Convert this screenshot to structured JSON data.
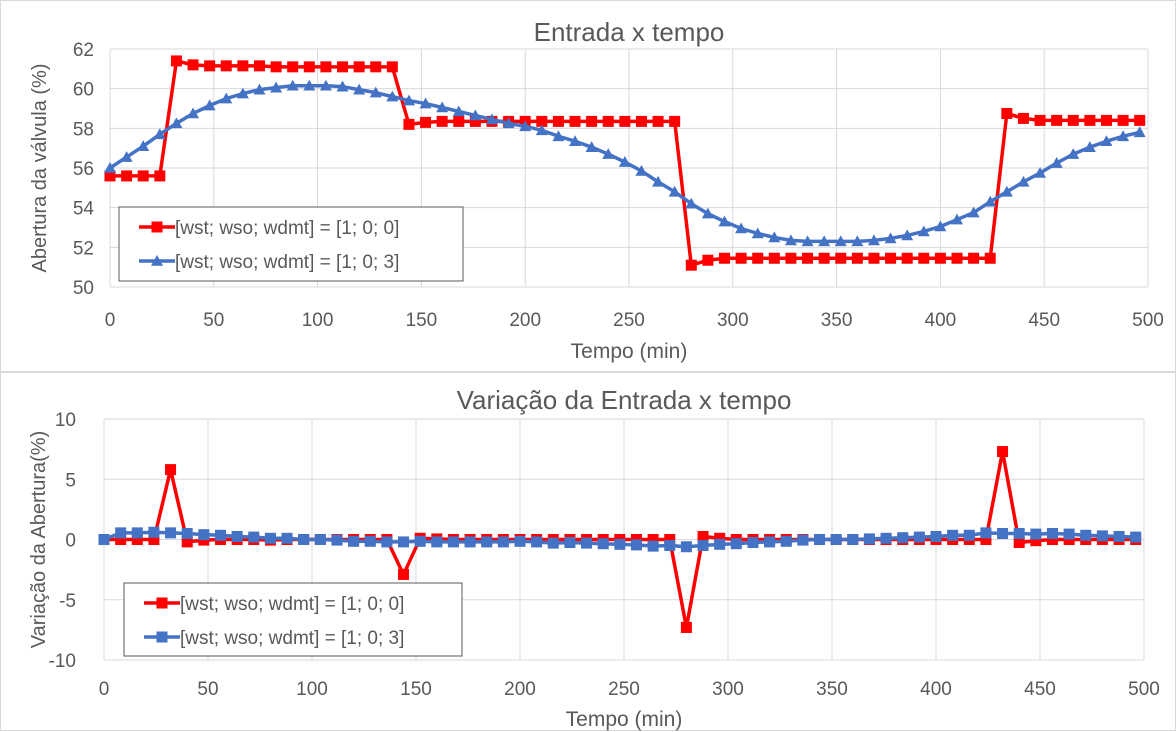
{
  "colors": {
    "series_a": "#ff0000",
    "series_b": "#4472c4",
    "grid": "#d9d9d9",
    "text": "#595959"
  },
  "chart_data": [
    {
      "type": "line",
      "title": "Entrada x tempo",
      "xlabel": "Tempo (min)",
      "ylabel": "Abertura da válvula (%)",
      "xlim": [
        0,
        500
      ],
      "ylim": [
        50,
        62
      ],
      "xticks": [
        "0",
        "50",
        "100",
        "150",
        "200",
        "250",
        "300",
        "350",
        "400",
        "450",
        "500"
      ],
      "yticks": [
        "50",
        "52",
        "54",
        "56",
        "58",
        "60",
        "62"
      ],
      "grid": true,
      "legend_position": "bottom-left",
      "series": [
        {
          "name": "[wst; wso; wdmt] = [1; 0; 0]",
          "marker": "square",
          "color": "#ff0000",
          "x": [
            0,
            8,
            16,
            24,
            32,
            40,
            48,
            56,
            64,
            72,
            80,
            88,
            96,
            104,
            112,
            120,
            128,
            136,
            144,
            152,
            160,
            168,
            176,
            184,
            192,
            200,
            208,
            216,
            224,
            232,
            240,
            248,
            256,
            264,
            272,
            280,
            288,
            296,
            304,
            312,
            320,
            328,
            336,
            344,
            352,
            360,
            368,
            376,
            384,
            392,
            400,
            408,
            416,
            424,
            432,
            440,
            448,
            456,
            464,
            472,
            480,
            488,
            496
          ],
          "y": [
            55.6,
            55.6,
            55.6,
            55.6,
            61.4,
            61.2,
            61.15,
            61.15,
            61.15,
            61.15,
            61.1,
            61.1,
            61.1,
            61.1,
            61.1,
            61.1,
            61.1,
            61.1,
            58.2,
            58.3,
            58.35,
            58.35,
            58.35,
            58.35,
            58.35,
            58.35,
            58.35,
            58.35,
            58.35,
            58.35,
            58.35,
            58.35,
            58.35,
            58.35,
            58.35,
            51.1,
            51.35,
            51.45,
            51.45,
            51.45,
            51.45,
            51.45,
            51.45,
            51.45,
            51.45,
            51.45,
            51.45,
            51.45,
            51.45,
            51.45,
            51.45,
            51.45,
            51.45,
            51.45,
            58.75,
            58.5,
            58.4,
            58.4,
            58.4,
            58.4,
            58.4,
            58.4,
            58.4
          ]
        },
        {
          "name": "[wst; wso; wdmt] = [1; 0; 3]",
          "marker": "triangle",
          "color": "#4472c4",
          "x": [
            0,
            8,
            16,
            24,
            32,
            40,
            48,
            56,
            64,
            72,
            80,
            88,
            96,
            104,
            112,
            120,
            128,
            136,
            144,
            152,
            160,
            168,
            176,
            184,
            192,
            200,
            208,
            216,
            224,
            232,
            240,
            248,
            256,
            264,
            272,
            280,
            288,
            296,
            304,
            312,
            320,
            328,
            336,
            344,
            352,
            360,
            368,
            376,
            384,
            392,
            400,
            408,
            416,
            424,
            432,
            440,
            448,
            456,
            464,
            472,
            480,
            488,
            496
          ],
          "y": [
            56.0,
            56.55,
            57.1,
            57.7,
            58.25,
            58.75,
            59.15,
            59.5,
            59.75,
            59.95,
            60.05,
            60.15,
            60.15,
            60.15,
            60.1,
            59.95,
            59.8,
            59.6,
            59.4,
            59.25,
            59.05,
            58.85,
            58.65,
            58.45,
            58.25,
            58.1,
            57.9,
            57.6,
            57.35,
            57.05,
            56.7,
            56.3,
            55.85,
            55.3,
            54.8,
            54.2,
            53.7,
            53.3,
            52.95,
            52.7,
            52.5,
            52.35,
            52.3,
            52.3,
            52.3,
            52.3,
            52.35,
            52.45,
            52.6,
            52.8,
            53.05,
            53.4,
            53.75,
            54.3,
            54.8,
            55.3,
            55.75,
            56.25,
            56.7,
            57.05,
            57.35,
            57.6,
            57.8
          ]
        }
      ]
    },
    {
      "type": "line",
      "title": "Variação da Entrada x tempo",
      "xlabel": "Tempo (min)",
      "ylabel": "Variação da Abertura(%)",
      "xlim": [
        0,
        500
      ],
      "ylim": [
        -10,
        10
      ],
      "xticks": [
        "0",
        "50",
        "100",
        "150",
        "200",
        "250",
        "300",
        "350",
        "400",
        "450",
        "500"
      ],
      "yticks": [
        "-10",
        "-5",
        "0",
        "5",
        "10"
      ],
      "grid": true,
      "legend_position": "bottom-left",
      "series": [
        {
          "name": "[wst; wso; wdmt] = [1; 0; 0]",
          "marker": "square",
          "color": "#ff0000",
          "x": [
            0,
            8,
            16,
            24,
            32,
            40,
            48,
            56,
            64,
            72,
            80,
            88,
            96,
            104,
            112,
            120,
            128,
            136,
            144,
            152,
            160,
            168,
            176,
            184,
            192,
            200,
            208,
            216,
            224,
            232,
            240,
            248,
            256,
            264,
            272,
            280,
            288,
            296,
            304,
            312,
            320,
            328,
            336,
            344,
            352,
            360,
            368,
            376,
            384,
            392,
            400,
            408,
            416,
            424,
            432,
            440,
            448,
            456,
            464,
            472,
            480,
            488,
            496
          ],
          "y": [
            0,
            0,
            0,
            0,
            5.8,
            -0.2,
            -0.05,
            0,
            0,
            0,
            -0.05,
            0,
            0,
            0,
            0,
            0,
            0,
            0,
            -2.9,
            0.1,
            0.05,
            0,
            0,
            0,
            0,
            0,
            0,
            0,
            0,
            0,
            0,
            0,
            0,
            0,
            0,
            -7.3,
            0.25,
            0.1,
            0,
            0,
            0,
            0,
            0,
            0,
            0,
            0,
            0,
            0,
            0,
            0,
            0,
            0,
            0,
            0,
            7.3,
            -0.25,
            -0.1,
            0,
            0,
            0,
            0,
            0,
            0
          ]
        },
        {
          "name": "[wst; wso; wdmt] = [1; 0; 3]",
          "marker": "square",
          "color": "#4472c4",
          "x": [
            0,
            8,
            16,
            24,
            32,
            40,
            48,
            56,
            64,
            72,
            80,
            88,
            96,
            104,
            112,
            120,
            128,
            136,
            144,
            152,
            160,
            168,
            176,
            184,
            192,
            200,
            208,
            216,
            224,
            232,
            240,
            248,
            256,
            264,
            272,
            280,
            288,
            296,
            304,
            312,
            320,
            328,
            336,
            344,
            352,
            360,
            368,
            376,
            384,
            392,
            400,
            408,
            416,
            424,
            432,
            440,
            448,
            456,
            464,
            472,
            480,
            488,
            496
          ],
          "y": [
            0,
            0.55,
            0.55,
            0.6,
            0.55,
            0.5,
            0.4,
            0.35,
            0.25,
            0.2,
            0.1,
            0.1,
            0,
            0,
            -0.05,
            -0.15,
            -0.15,
            -0.2,
            -0.2,
            -0.15,
            -0.2,
            -0.2,
            -0.2,
            -0.2,
            -0.2,
            -0.15,
            -0.2,
            -0.3,
            -0.25,
            -0.3,
            -0.35,
            -0.4,
            -0.45,
            -0.55,
            -0.5,
            -0.6,
            -0.5,
            -0.4,
            -0.35,
            -0.25,
            -0.2,
            -0.15,
            -0.05,
            0,
            0,
            0,
            0.05,
            0.1,
            0.15,
            0.2,
            0.25,
            0.35,
            0.35,
            0.55,
            0.5,
            0.5,
            0.45,
            0.5,
            0.45,
            0.35,
            0.3,
            0.25,
            0.2
          ]
        }
      ]
    }
  ]
}
